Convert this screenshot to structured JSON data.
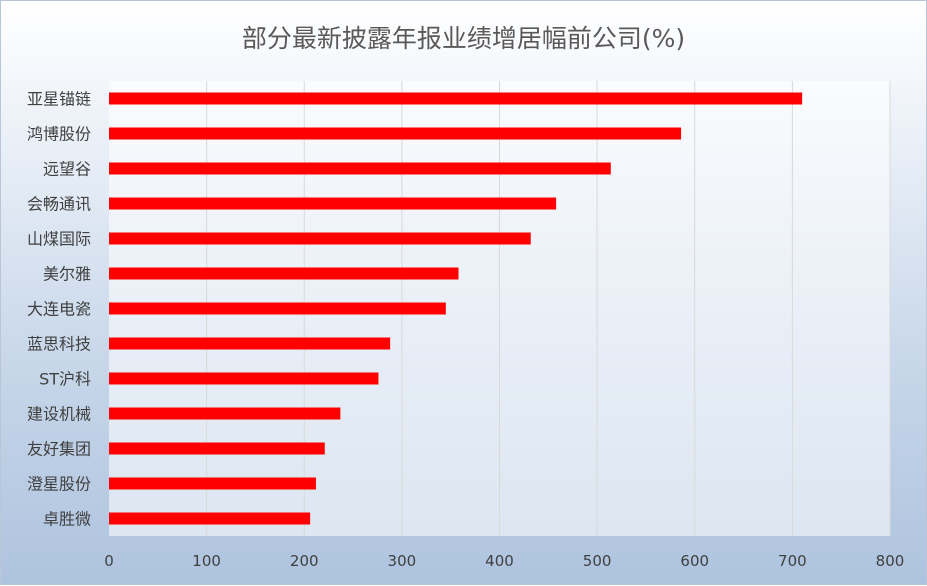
{
  "chart_data": {
    "type": "bar",
    "orientation": "horizontal",
    "title": "部分最新披露年报业绩增居幅前公司(%)",
    "categories": [
      "亚星锚链",
      "鸿博股份",
      "远望谷",
      "会畅通讯",
      "山煤国际",
      "美尔雅",
      "大连电瓷",
      "蓝思科技",
      "ST沪科",
      "建设机械",
      "友好集团",
      "澄星股份",
      "卓胜微"
    ],
    "values": [
      710,
      586,
      514,
      458,
      432,
      358,
      345,
      288,
      276,
      237,
      221,
      212,
      206
    ],
    "xlim": [
      0,
      800
    ],
    "xticks": [
      "0",
      "100",
      "200",
      "300",
      "400",
      "500",
      "600",
      "700",
      "800"
    ],
    "grid": true,
    "legend": "none",
    "bar_color": "#ff0000"
  }
}
